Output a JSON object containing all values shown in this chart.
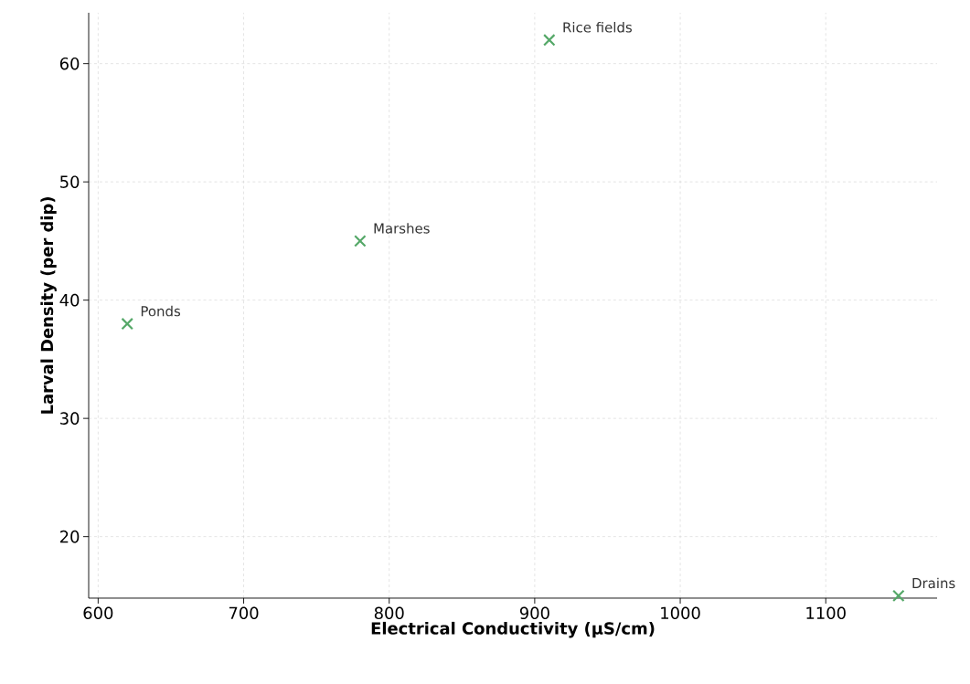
{
  "chart_data": {
    "type": "scatter",
    "xlabel": "Electrical Conductivity (µS/cm)",
    "ylabel": "Larval Density (per dip)",
    "x": [
      620,
      780,
      910,
      1150
    ],
    "values": [
      38,
      45,
      62,
      15
    ],
    "color": "#55a868",
    "marker": "cross",
    "xlim": [
      593.5,
      1176.5
    ],
    "ylim": [
      14.8,
      64.3
    ],
    "xticks": [
      600,
      700,
      800,
      900,
      1000,
      1100
    ],
    "yticks": [
      20,
      30,
      40,
      50,
      60
    ],
    "grid": true,
    "annotations": [
      {
        "text": "Ponds",
        "x": 620,
        "y": 38
      },
      {
        "text": "Marshes",
        "x": 780,
        "y": 45
      },
      {
        "text": "Rice fields",
        "x": 910,
        "y": 62
      },
      {
        "text": "Drains",
        "x": 1150,
        "y": 15
      }
    ]
  }
}
